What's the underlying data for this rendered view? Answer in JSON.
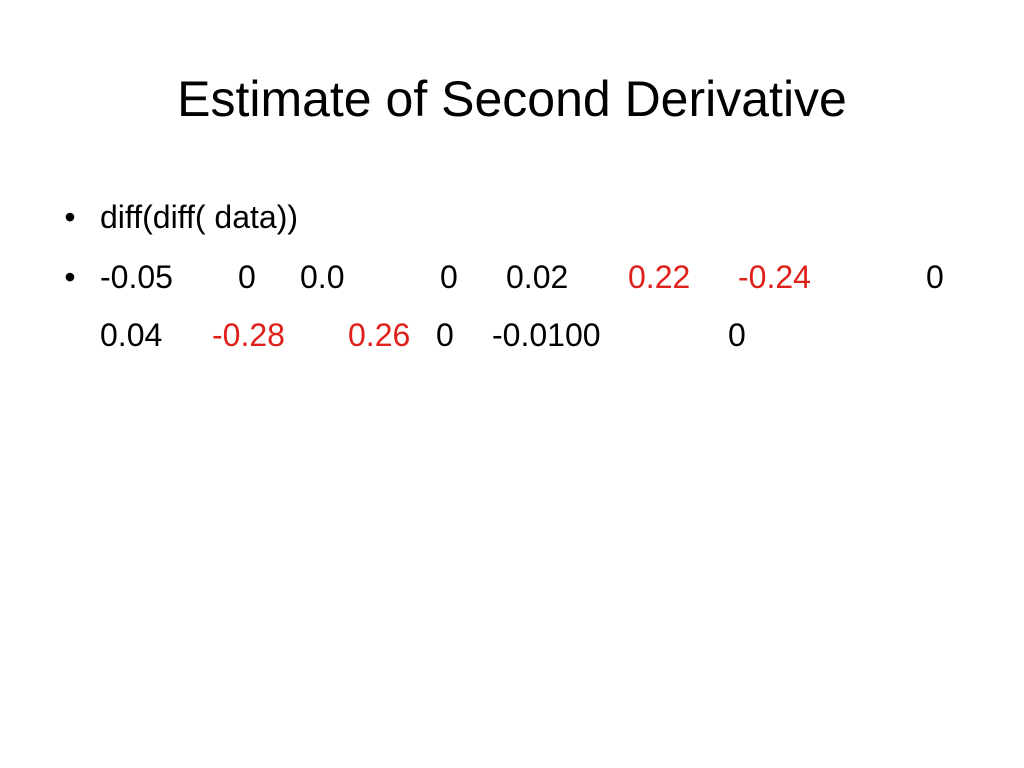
{
  "slide": {
    "title": "Estimate of Second Derivative",
    "bullets": [
      {
        "text": "diff(diff( data))"
      }
    ],
    "values_bullet": {
      "highlight_color": "#e0201a",
      "line1": [
        {
          "text": "-0.05",
          "highlight": false
        },
        {
          "text": "0",
          "highlight": false
        },
        {
          "text": "0.0",
          "highlight": false
        },
        {
          "text": "0",
          "highlight": false
        },
        {
          "text": "0.02",
          "highlight": false
        },
        {
          "text": "0.22",
          "highlight": true
        },
        {
          "text": "-0.24",
          "highlight": true
        },
        {
          "text": "0",
          "highlight": false
        }
      ],
      "line2": [
        {
          "text": "0.04",
          "highlight": false
        },
        {
          "text": "-0.28",
          "highlight": true
        },
        {
          "text": "0.26",
          "highlight": true
        },
        {
          "text": "0",
          "highlight": false
        },
        {
          "text": "-0.0100",
          "highlight": false
        },
        {
          "text": "0",
          "highlight": false
        }
      ]
    }
  }
}
